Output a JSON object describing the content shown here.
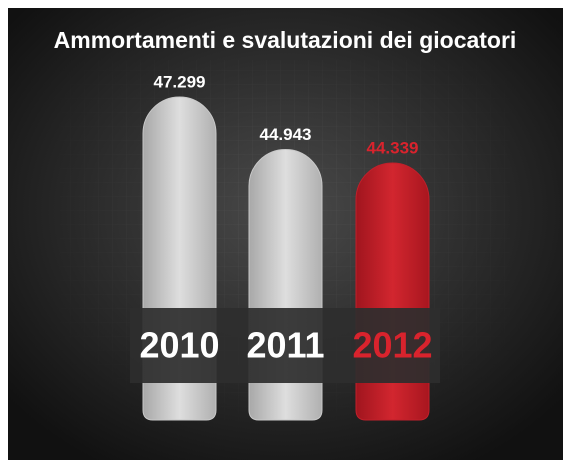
{
  "chart_data": {
    "type": "bar",
    "title": "Ammortamenti e svalutazioni dei giocatori",
    "categories": [
      "2010",
      "2011",
      "2012"
    ],
    "values": [
      47.299,
      44.943,
      44.339
    ],
    "colors": [
      "#c9c9c9",
      "#c9c9c9",
      "#c1202b"
    ],
    "label_colors": [
      "#ffffff",
      "#ffffff",
      "#d9232d"
    ]
  }
}
